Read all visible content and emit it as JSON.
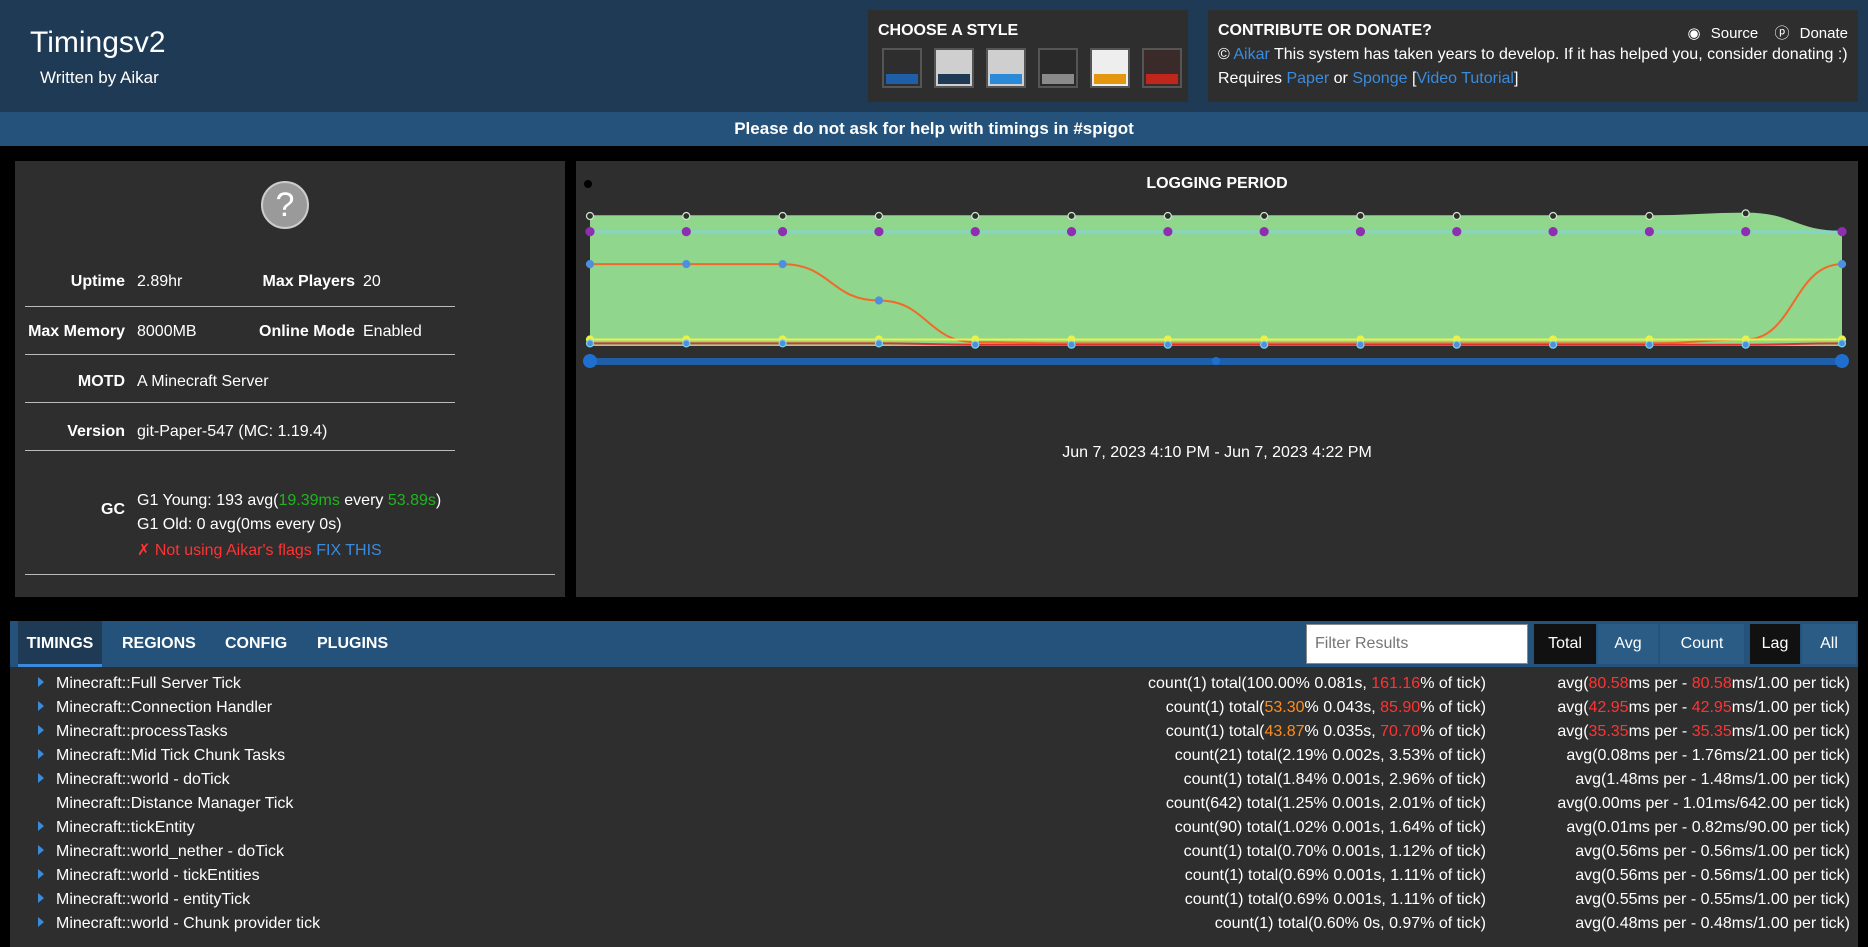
{
  "header": {
    "title": "Timingsv2",
    "subtitle": "Written by Aikar",
    "style_title": "CHOOSE A STYLE",
    "contribute_title": "CONTRIBUTE OR DONATE?",
    "source_label": "Source",
    "donate_label": "Donate",
    "copyright": "©",
    "author_link": "Aikar",
    "contribute_text": "This system has taken years to develop. If it has helped you, consider donating :)",
    "requires": "Requires",
    "paper_link": "Paper",
    "or": "or",
    "sponge_link": "Sponge",
    "video_link": "Video Tutorial",
    "bracket_open": "[",
    "bracket_close": "]"
  },
  "styles": [
    {
      "top": "#2e2e2e",
      "line": "#2e2e2e",
      "bottom": "#1f5fa8"
    },
    {
      "top": "#cfcfcf",
      "line": "#cfcfcf",
      "bottom": "#1f3a55"
    },
    {
      "top": "#cfcfcf",
      "line": "#cfcfcf",
      "bottom": "#2b8ad8"
    },
    {
      "top": "#2a2a2a",
      "line": "#2a2a2a",
      "bottom": "#8a8a8a"
    },
    {
      "top": "#eeeeee",
      "line": "#eeeeee",
      "bottom": "#e5960f"
    },
    {
      "top": "#3a2a2a",
      "line": "#3a2a2a",
      "bottom": "#c0261c"
    }
  ],
  "banner": "Please do not ask for help with timings in #spigot",
  "server": {
    "icon_glyph": "?",
    "uptime_label": "Uptime",
    "uptime": "2.89hr",
    "max_players_label": "Max Players",
    "max_players": "20",
    "max_memory_label": "Max Memory",
    "max_memory": "8000MB",
    "online_mode_label": "Online Mode",
    "online_mode": "Enabled",
    "motd_label": "MOTD",
    "motd": "A Minecraft Server",
    "version_label": "Version",
    "version": "git-Paper-547 (MC: 1.19.4)",
    "gc_label": "GC",
    "gc_young_prefix": "G1 Young: 193 avg(",
    "gc_young_ms": "19.39ms",
    "gc_young_every": " every ",
    "gc_young_s": "53.89s",
    "gc_young_suffix": ")",
    "gc_old": "G1 Old: 0 avg(0ms every 0s)",
    "gc_warn": "✗ Not using Aikar's flags",
    "gc_fix": "FIX THIS"
  },
  "chart": {
    "title": "LOGGING PERIOD",
    "range_label": "Jun 7, 2023 4:10 PM - Jun 7, 2023 4:22 PM",
    "colors": {
      "area": "#90d68c",
      "cyan": "#7fd3e6",
      "orange": "#f06a2a",
      "yellow": "#e8f24a",
      "red": "#e03030",
      "purple": "#8e2fb0",
      "slider": "#1f5fa8"
    }
  },
  "chart_data": {
    "type": "line",
    "title": "LOGGING PERIOD",
    "x_points": 14,
    "series": [
      {
        "values": [
          100,
          100,
          100,
          100,
          100,
          100,
          100,
          100,
          100,
          100,
          100,
          100,
          102,
          88
        ]
      },
      {
        "values": [
          88,
          88,
          88,
          88,
          88,
          88,
          88,
          88,
          88,
          88,
          88,
          88,
          88,
          88
        ]
      },
      {
        "values": [
          63,
          63,
          63,
          35,
          3,
          2,
          2,
          2,
          2,
          2,
          2,
          2,
          5,
          63
        ]
      },
      {
        "values": [
          5,
          5,
          5,
          5,
          5,
          5,
          5,
          5,
          5,
          5,
          5,
          5,
          5,
          5
        ]
      },
      {
        "values": [
          2,
          2,
          2,
          2,
          1,
          1,
          1,
          1,
          1,
          1,
          1,
          1,
          1,
          2
        ]
      }
    ]
  },
  "timings": {
    "tabs": [
      "TIMINGS",
      "REGIONS",
      "CONFIG",
      "PLUGINS"
    ],
    "filter_placeholder": "Filter Results",
    "buttons": [
      "Total",
      "Avg",
      "Count",
      "Lag",
      "All"
    ],
    "rows": [
      {
        "name": "Minecraft::Full Server Tick",
        "arrow": true,
        "mid_a": "count(1)  total(100.00% 0.081s, ",
        "mid_b": "",
        "mid_c": "",
        "mid_hl": "161.16",
        "mid_d": "% of tick)",
        "avg_a": "avg(",
        "avg_hl1": "80.58",
        "avg_b": "ms per - ",
        "avg_hl2": "80.58",
        "avg_c": "ms/1.00 per tick)",
        "c1": "#ffffff",
        "c2": "#ff3333"
      },
      {
        "name": "Minecraft::Connection Handler",
        "arrow": true,
        "mid_a": "count(1)  total(",
        "mid_b": "53.30",
        "mid_c": "% 0.043s, ",
        "mid_hl": "85.90",
        "mid_d": "% of tick)",
        "avg_a": "avg(",
        "avg_hl1": "42.95",
        "avg_b": "ms per - ",
        "avg_hl2": "42.95",
        "avg_c": "ms/1.00 per tick)",
        "c1": "#ff8c1a",
        "c2": "#ff3333"
      },
      {
        "name": "Minecraft::processTasks",
        "arrow": true,
        "mid_a": "count(1)  total(",
        "mid_b": "43.87",
        "mid_c": "% 0.035s, ",
        "mid_hl": "70.70",
        "mid_d": "% of tick)",
        "avg_a": "avg(",
        "avg_hl1": "35.35",
        "avg_b": "ms per - ",
        "avg_hl2": "35.35",
        "avg_c": "ms/1.00 per tick)",
        "c1": "#ff8c1a",
        "c2": "#ff3333"
      },
      {
        "name": "Minecraft::Mid Tick Chunk Tasks",
        "arrow": true,
        "mid_a": "count(21)  total(2.19% 0.002s, 3.53% of tick)",
        "mid_b": "",
        "mid_c": "",
        "mid_hl": "",
        "mid_d": "",
        "avg_a": "avg(0.08ms per - 1.76ms/21.00 per tick)",
        "avg_hl1": "",
        "avg_b": "",
        "avg_hl2": "",
        "avg_c": "",
        "c1": "#ffffff",
        "c2": "#ffffff"
      },
      {
        "name": "Minecraft::world - doTick",
        "arrow": true,
        "mid_a": "count(1)  total(1.84% 0.001s, 2.96% of tick)",
        "mid_b": "",
        "mid_c": "",
        "mid_hl": "",
        "mid_d": "",
        "avg_a": "avg(1.48ms per - 1.48ms/1.00 per tick)",
        "avg_hl1": "",
        "avg_b": "",
        "avg_hl2": "",
        "avg_c": "",
        "c1": "#ffffff",
        "c2": "#ffffff"
      },
      {
        "name": "Minecraft::Distance Manager Tick",
        "arrow": false,
        "mid_a": "count(642)  total(1.25% 0.001s, 2.01% of tick)",
        "mid_b": "",
        "mid_c": "",
        "mid_hl": "",
        "mid_d": "",
        "avg_a": "avg(0.00ms per - 1.01ms/642.00 per tick)",
        "avg_hl1": "",
        "avg_b": "",
        "avg_hl2": "",
        "avg_c": "",
        "c1": "#ffffff",
        "c2": "#ffffff"
      },
      {
        "name": "Minecraft::tickEntity",
        "arrow": true,
        "mid_a": "count(90)  total(1.02% 0.001s, 1.64% of tick)",
        "mid_b": "",
        "mid_c": "",
        "mid_hl": "",
        "mid_d": "",
        "avg_a": "avg(0.01ms per - 0.82ms/90.00 per tick)",
        "avg_hl1": "",
        "avg_b": "",
        "avg_hl2": "",
        "avg_c": "",
        "c1": "#ffffff",
        "c2": "#ffffff"
      },
      {
        "name": "Minecraft::world_nether - doTick",
        "arrow": true,
        "mid_a": "count(1)  total(0.70% 0.001s, 1.12% of tick)",
        "mid_b": "",
        "mid_c": "",
        "mid_hl": "",
        "mid_d": "",
        "avg_a": "avg(0.56ms per - 0.56ms/1.00 per tick)",
        "avg_hl1": "",
        "avg_b": "",
        "avg_hl2": "",
        "avg_c": "",
        "c1": "#ffffff",
        "c2": "#ffffff"
      },
      {
        "name": "Minecraft::world - tickEntities",
        "arrow": true,
        "mid_a": "count(1)  total(0.69% 0.001s, 1.11% of tick)",
        "mid_b": "",
        "mid_c": "",
        "mid_hl": "",
        "mid_d": "",
        "avg_a": "avg(0.56ms per - 0.56ms/1.00 per tick)",
        "avg_hl1": "",
        "avg_b": "",
        "avg_hl2": "",
        "avg_c": "",
        "c1": "#ffffff",
        "c2": "#ffffff"
      },
      {
        "name": "Minecraft::world - entityTick",
        "arrow": true,
        "mid_a": "count(1)  total(0.69% 0.001s, 1.11% of tick)",
        "mid_b": "",
        "mid_c": "",
        "mid_hl": "",
        "mid_d": "",
        "avg_a": "avg(0.55ms per - 0.55ms/1.00 per tick)",
        "avg_hl1": "",
        "avg_b": "",
        "avg_hl2": "",
        "avg_c": "",
        "c1": "#ffffff",
        "c2": "#ffffff"
      },
      {
        "name": "Minecraft::world - Chunk provider tick",
        "arrow": true,
        "mid_a": "count(1)  total(0.60% 0s, 0.97% of tick)",
        "mid_b": "",
        "mid_c": "",
        "mid_hl": "",
        "mid_d": "",
        "avg_a": "avg(0.48ms per - 0.48ms/1.00 per tick)",
        "avg_hl1": "",
        "avg_b": "",
        "avg_hl2": "",
        "avg_c": "",
        "c1": "#ffffff",
        "c2": "#ffffff"
      }
    ]
  }
}
